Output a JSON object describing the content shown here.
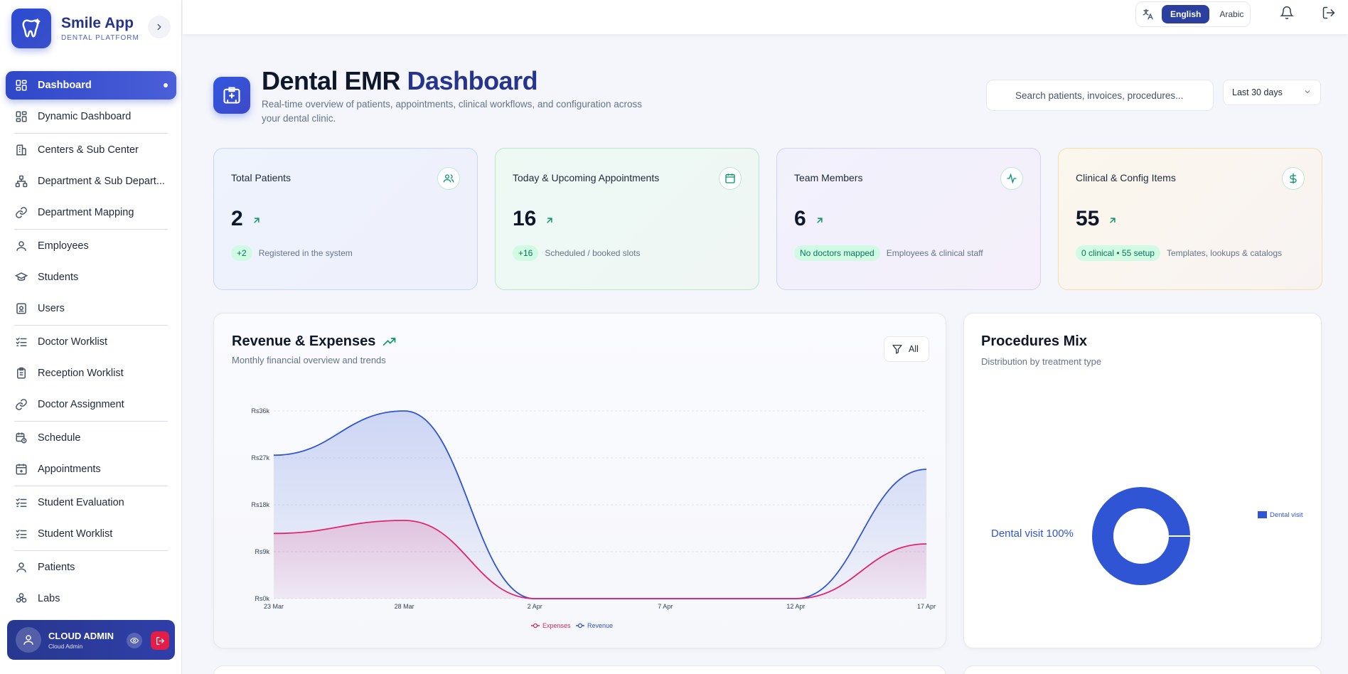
{
  "brand": {
    "name": "Smile App",
    "subtitle": "DENTAL PLATFORM"
  },
  "sidebar": {
    "items": [
      {
        "label": "Dashboard",
        "icon": "grid-icon",
        "active": true
      },
      {
        "label": "Dynamic Dashboard",
        "icon": "grid-icon"
      },
      {
        "label": "Centers & Sub Center",
        "icon": "building-icon"
      },
      {
        "label": "Department & Sub Depart...",
        "icon": "hierarchy-icon"
      },
      {
        "label": "Department Mapping",
        "icon": "link-icon"
      },
      {
        "label": "Employees",
        "icon": "user-icon"
      },
      {
        "label": "Students",
        "icon": "graduation-cap-icon"
      },
      {
        "label": "Users",
        "icon": "id-badge-icon"
      },
      {
        "label": "Doctor Worklist",
        "icon": "checklist-icon"
      },
      {
        "label": "Reception Worklist",
        "icon": "clipboard-icon"
      },
      {
        "label": "Doctor Assignment",
        "icon": "link-icon"
      },
      {
        "label": "Schedule",
        "icon": "calendar-clock-icon"
      },
      {
        "label": "Appointments",
        "icon": "calendar-plus-icon"
      },
      {
        "label": "Student Evaluation",
        "icon": "checklist-icon"
      },
      {
        "label": "Student Worklist",
        "icon": "checklist-icon"
      },
      {
        "label": "Patients",
        "icon": "user-icon"
      },
      {
        "label": "Labs",
        "icon": "biohazard-icon"
      }
    ]
  },
  "user": {
    "name": "CLOUD ADMIN",
    "role": "Cloud Admin"
  },
  "topbar": {
    "lang_english": "English",
    "lang_arabic": "Arabic"
  },
  "header": {
    "title_part1": "Dental EMR",
    "title_part2": "Dashboard",
    "subtitle": "Real-time overview of patients, appointments, clinical workflows, and configuration across your dental clinic.",
    "search_placeholder": "Search patients, invoices, procedures...",
    "range": "Last 30 days"
  },
  "kpis": [
    {
      "label": "Total Patients",
      "value": "2",
      "badge": "+2",
      "note": "Registered in the system",
      "icon": "users-icon"
    },
    {
      "label": "Today & Upcoming Appointments",
      "value": "16",
      "badge": "+16",
      "note": "Scheduled / booked slots",
      "icon": "calendar-icon"
    },
    {
      "label": "Team Members",
      "value": "6",
      "badge": "No doctors mapped",
      "note": "Employees & clinical staff",
      "icon": "activity-icon"
    },
    {
      "label": "Clinical & Config Items",
      "value": "55",
      "badge": "0 clinical • 55 setup",
      "note": "Templates, lookups & catalogs",
      "icon": "dollar-icon"
    }
  ],
  "revenue_card": {
    "title": "Revenue & Expenses",
    "subtitle": "Monthly financial overview and trends",
    "filter": "All"
  },
  "procedures_card": {
    "title": "Procedures Mix",
    "subtitle": "Distribution by treatment type",
    "slice_label": "Dental visit 100%"
  },
  "colors": {
    "revenue": "#2f55d4",
    "expenses": "#e0266e",
    "accent": "#2b3f9e",
    "success": "#059669"
  },
  "chart_data": [
    {
      "type": "area",
      "x": [
        "23 Mar",
        "28 Mar",
        "2 Apr",
        "7 Apr",
        "12 Apr",
        "17 Apr"
      ],
      "ylim": [
        0,
        36000
      ],
      "y_ticks": [
        "Rs0k",
        "Rs9k",
        "Rs18k",
        "Rs27k",
        "Rs36k"
      ],
      "series": [
        {
          "name": "Expenses",
          "values": [
            12500,
            15000,
            0,
            0,
            0,
            10500
          ]
        },
        {
          "name": "Revenue",
          "values": [
            27500,
            36000,
            0,
            0,
            0,
            24800
          ]
        }
      ],
      "legend": "bottom"
    },
    {
      "type": "pie",
      "categories": [
        "Dental visit"
      ],
      "values": [
        100
      ],
      "legend": "right"
    }
  ]
}
